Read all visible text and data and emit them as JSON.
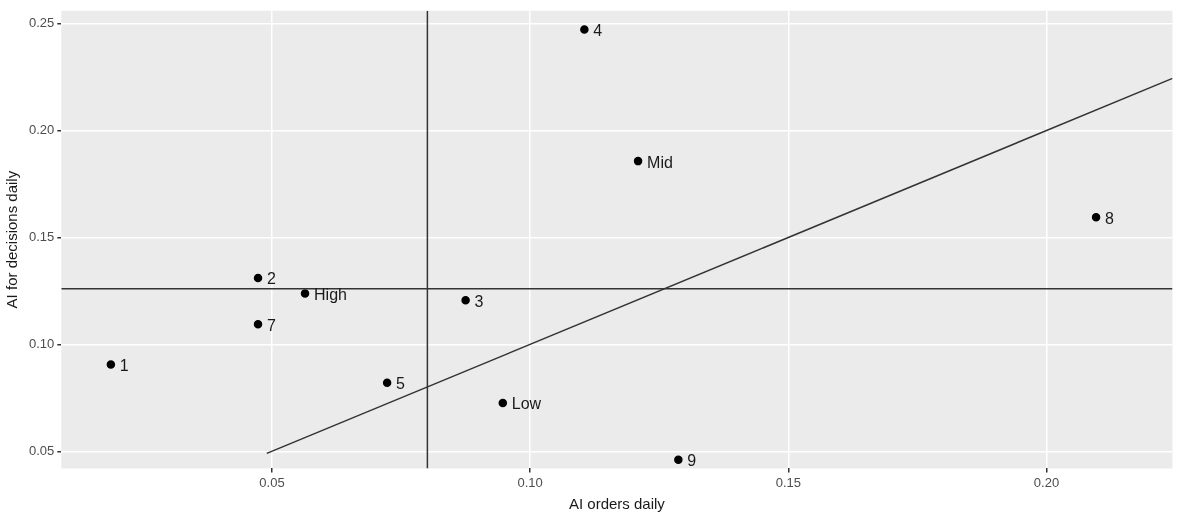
{
  "chart_data": {
    "type": "scatter",
    "xlabel": "AI orders daily",
    "ylabel": "AI for decisions daily",
    "xlim": [
      0.0092,
      0.2244
    ],
    "xticks": [
      {
        "value": 0.05,
        "label": "0.05"
      },
      {
        "value": 0.1,
        "label": "0.10"
      },
      {
        "value": 0.15,
        "label": "0.15"
      },
      {
        "value": 0.2,
        "label": "0.20"
      }
    ],
    "ylim": [
      0.042,
      0.256
    ],
    "yticks": [
      {
        "value": 0.05,
        "label": "0.05"
      },
      {
        "value": 0.1,
        "label": "0.10"
      },
      {
        "value": 0.15,
        "label": "0.15"
      },
      {
        "value": 0.2,
        "label": "0.20"
      },
      {
        "value": 0.25,
        "label": "0.25"
      }
    ],
    "grid": true,
    "legend": false,
    "marker": "circle",
    "series": [
      {
        "type": "scatter",
        "color": "#000000",
        "x": [
          0.0188,
          0.0473,
          0.0564,
          0.0473,
          0.0723,
          0.0875,
          0.0947,
          0.1105,
          0.1209,
          0.1287,
          0.2096
        ],
        "values": [
          0.0906,
          0.131,
          0.1238,
          0.1094,
          0.0821,
          0.1206,
          0.0726,
          0.2473,
          0.1857,
          0.046,
          0.1594
        ]
      },
      {
        "type": "line",
        "color": "#333333",
        "marker": "none",
        "x": [
          0.049,
          0.2244
        ],
        "values": [
          0.049,
          0.2244
        ]
      }
    ],
    "ref_lines": [
      {
        "axis": "x",
        "value": 0.0801,
        "color": "#333333"
      },
      {
        "axis": "y",
        "value": 0.126,
        "color": "#333333"
      }
    ],
    "annotations": [
      {
        "text": "1",
        "x": 0.0188,
        "y": 0.0906
      },
      {
        "text": "2",
        "x": 0.0473,
        "y": 0.131
      },
      {
        "text": "High",
        "x": 0.0564,
        "y": 0.1238
      },
      {
        "text": "7",
        "x": 0.0473,
        "y": 0.1094
      },
      {
        "text": "5",
        "x": 0.0723,
        "y": 0.0821
      },
      {
        "text": "3",
        "x": 0.0875,
        "y": 0.1206
      },
      {
        "text": "Low",
        "x": 0.0947,
        "y": 0.0726
      },
      {
        "text": "4",
        "x": 0.1105,
        "y": 0.2473
      },
      {
        "text": "Mid",
        "x": 0.1209,
        "y": 0.1857
      },
      {
        "text": "9",
        "x": 0.1287,
        "y": 0.046
      },
      {
        "text": "8",
        "x": 0.2096,
        "y": 0.1594
      }
    ]
  }
}
